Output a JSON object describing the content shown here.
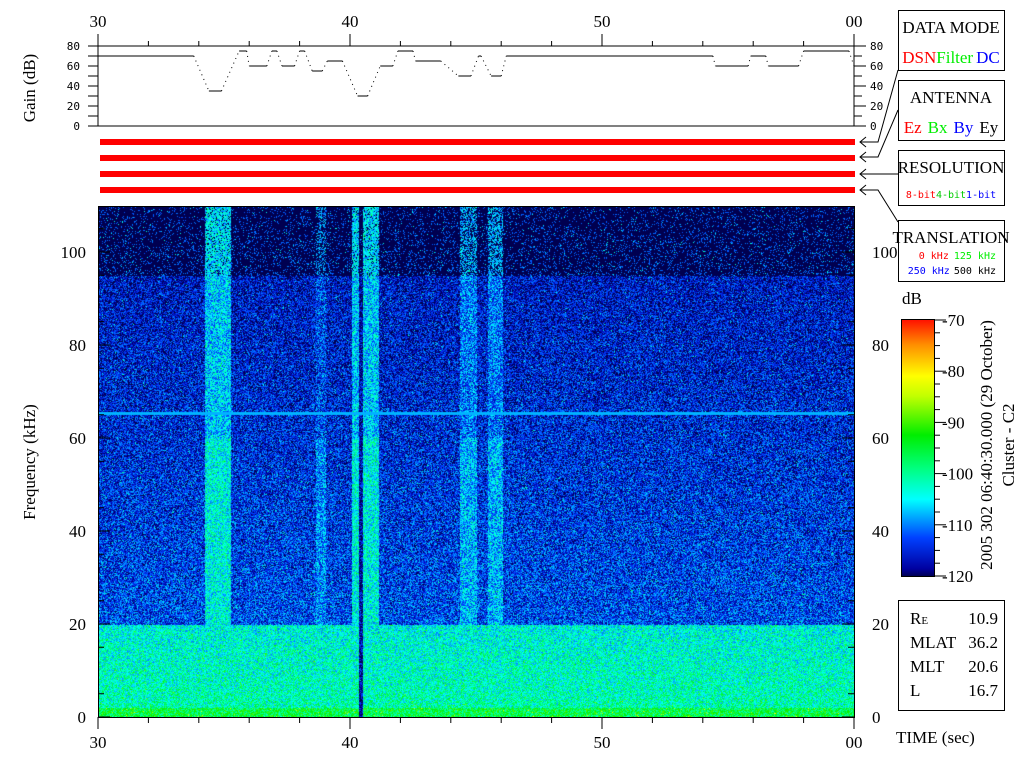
{
  "chart_data": [
    {
      "type": "line",
      "ylabel": "Gain (dB)",
      "ylim": [
        0,
        80
      ],
      "yticks": [
        "0",
        "20",
        "40",
        "60",
        "80"
      ],
      "xlim": [
        30,
        60
      ],
      "xticks": [
        "30",
        "40",
        "50",
        "00"
      ],
      "steps": [
        {
          "t0": 30.0,
          "t1": 33.8,
          "gain": 70
        },
        {
          "t0": 34.4,
          "t1": 34.9,
          "gain": 35
        },
        {
          "t0": 35.6,
          "t1": 35.9,
          "gain": 75
        },
        {
          "t0": 36.0,
          "t1": 36.7,
          "gain": 60
        },
        {
          "t0": 36.9,
          "t1": 37.1,
          "gain": 75
        },
        {
          "t0": 37.3,
          "t1": 37.8,
          "gain": 60
        },
        {
          "t0": 38.0,
          "t1": 38.2,
          "gain": 75
        },
        {
          "t0": 38.5,
          "t1": 38.9,
          "gain": 55
        },
        {
          "t0": 39.1,
          "t1": 39.7,
          "gain": 65
        },
        {
          "t0": 40.3,
          "t1": 40.7,
          "gain": 30
        },
        {
          "t0": 41.2,
          "t1": 41.7,
          "gain": 60
        },
        {
          "t0": 41.9,
          "t1": 42.5,
          "gain": 75
        },
        {
          "t0": 42.6,
          "t1": 43.6,
          "gain": 65
        },
        {
          "t0": 44.3,
          "t1": 44.8,
          "gain": 50
        },
        {
          "t0": 45.1,
          "t1": 45.2,
          "gain": 70
        },
        {
          "t0": 45.6,
          "t1": 46.0,
          "gain": 50
        },
        {
          "t0": 46.2,
          "t1": 54.4,
          "gain": 70
        },
        {
          "t0": 54.5,
          "t1": 55.8,
          "gain": 60
        },
        {
          "t0": 55.9,
          "t1": 56.5,
          "gain": 70
        },
        {
          "t0": 56.6,
          "t1": 57.8,
          "gain": 60
        },
        {
          "t0": 58.0,
          "t1": 59.8,
          "gain": 75
        }
      ]
    },
    {
      "type": "heatmap",
      "xlabel": "TIME (sec)",
      "ylabel": "Frequency (kHz)",
      "xlim": [
        30,
        60
      ],
      "xticks": [
        "30",
        "40",
        "50",
        "00"
      ],
      "ylim": [
        0,
        110
      ],
      "yticks": [
        "0",
        "20",
        "40",
        "60",
        "80",
        "100"
      ],
      "colorbar": {
        "label": "dB",
        "range": [
          -120,
          -70
        ],
        "ticks": [
          "-70",
          "-80",
          "-90",
          "-100",
          "-110",
          "-120"
        ]
      },
      "mode_bars_color": "#ff0000",
      "mode_bars": 4
    }
  ],
  "panels": {
    "data_mode": {
      "title": "DATA MODE",
      "items": [
        {
          "text": "DSN",
          "color": "#ff0000"
        },
        {
          "text": "Filter",
          "color": "#00ee00"
        },
        {
          "text": "DC",
          "color": "#0000ff"
        }
      ]
    },
    "antenna": {
      "title": "ANTENNA",
      "items": [
        {
          "text": "Ez",
          "color": "#ff0000"
        },
        {
          "text": "Bx",
          "color": "#00ee00"
        },
        {
          "text": "By",
          "color": "#0000ff"
        },
        {
          "text": "Ey",
          "color": "#000000"
        }
      ]
    },
    "resolution": {
      "title": "RESOLUTION",
      "items": [
        {
          "text": "8-bit",
          "color": "#ff0000"
        },
        {
          "text": "4-bit",
          "color": "#00cc00"
        },
        {
          "text": "1-bit",
          "color": "#0000ff"
        }
      ]
    },
    "translation": {
      "title": "TRANSLATION",
      "items": [
        {
          "text": "0 kHz",
          "color": "#ff0000"
        },
        {
          "text": "125 kHz",
          "color": "#00ee00"
        },
        {
          "text": "250 kHz",
          "color": "#0000ff"
        },
        {
          "text": "500 kHz",
          "color": "#000000"
        }
      ]
    }
  },
  "timestamp": "2005 302 06:40:30.000 (29 October)",
  "spacecraft": "Cluster - C2",
  "orbit": [
    {
      "label": "R",
      "sub": "E",
      "value": "10.9"
    },
    {
      "label": "MLAT",
      "sub": "",
      "value": "36.2"
    },
    {
      "label": "MLT",
      "sub": "",
      "value": "20.6"
    },
    {
      "label": "L",
      "sub": "",
      "value": "16.7"
    }
  ]
}
